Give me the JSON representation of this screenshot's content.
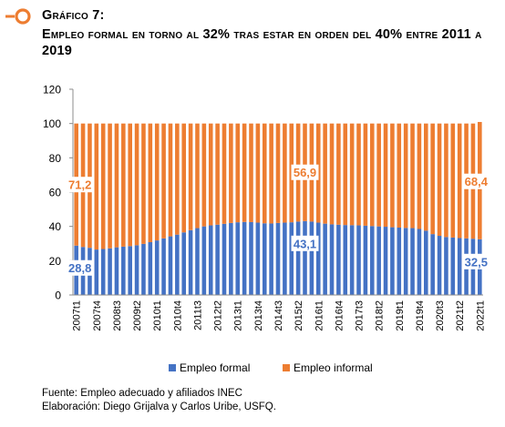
{
  "header": {
    "figure_label": "Gráfico 7:",
    "title": "Empleo formal en torno al 32% tras estar en orden del 40% entre 2011 a 2019"
  },
  "footer": {
    "source": "Fuente: Empleo adecuado y afiliados INEC",
    "credits": "Elaboración: Diego Grijalva y Carlos Uribe, USFQ."
  },
  "colors": {
    "accent": "#ED7D31",
    "formal": "#4472C4",
    "informal": "#ED7D31"
  },
  "chart_data": {
    "type": "bar",
    "stacked": true,
    "title": "",
    "xlabel": "",
    "ylabel": "",
    "ylim": [
      0,
      120
    ],
    "yticks": [
      0,
      20,
      40,
      60,
      80,
      100,
      120
    ],
    "grid": false,
    "legend_position": "bottom",
    "x_tick_labels": [
      "2007t1",
      "2007t4",
      "2008t3",
      "2009t2",
      "2010t1",
      "2010t4",
      "2011t3",
      "2012t2",
      "2013t1",
      "2013t4",
      "2014t3",
      "2015t2",
      "2016t1",
      "2016t4",
      "2017t3",
      "2018t2",
      "2019t1",
      "2019t4",
      "2020t3",
      "2021t2",
      "2022t1"
    ],
    "categories": [
      "2007t1",
      "2007t2",
      "2007t3",
      "2007t4",
      "2008t1",
      "2008t2",
      "2008t3",
      "2008t4",
      "2009t1",
      "2009t2",
      "2009t3",
      "2009t4",
      "2010t1",
      "2010t2",
      "2010t3",
      "2010t4",
      "2011t1",
      "2011t2",
      "2011t3",
      "2011t4",
      "2012t1",
      "2012t2",
      "2012t3",
      "2012t4",
      "2013t1",
      "2013t2",
      "2013t3",
      "2013t4",
      "2014t1",
      "2014t2",
      "2014t3",
      "2014t4",
      "2015t1",
      "2015t2",
      "2015t3",
      "2015t4",
      "2016t1",
      "2016t2",
      "2016t3",
      "2016t4",
      "2017t1",
      "2017t2",
      "2017t3",
      "2017t4",
      "2018t1",
      "2018t2",
      "2018t3",
      "2018t4",
      "2019t1",
      "2019t2",
      "2019t3",
      "2019t4",
      "2020t1",
      "2020t2",
      "2020t3",
      "2020t4",
      "2021t1",
      "2021t2",
      "2021t3",
      "2021t4",
      "2022t1"
    ],
    "series": [
      {
        "name": "Empleo formal",
        "color": "#4472C4",
        "values": [
          28.8,
          28,
          27.5,
          26.5,
          26.8,
          27.2,
          27.8,
          28.2,
          28.5,
          29,
          29.8,
          30.8,
          31.8,
          33,
          34.2,
          35.2,
          36.5,
          37.8,
          39,
          40,
          40.6,
          41,
          41.5,
          42,
          42.4,
          42.6,
          42.5,
          42.2,
          41.8,
          41.7,
          42,
          42.2,
          42.4,
          42.8,
          43.1,
          42.8,
          42.2,
          41.6,
          41.2,
          41,
          40.8,
          40.7,
          40.6,
          40.4,
          40.2,
          40,
          39.8,
          39.5,
          39.3,
          39.1,
          39,
          38.5,
          37.5,
          35.5,
          34.5,
          33.8,
          33.5,
          33.2,
          33,
          32.8,
          32.5
        ]
      },
      {
        "name": "Empleo informal",
        "color": "#ED7D31",
        "values": [
          71.2,
          72,
          72.5,
          73.5,
          73.2,
          72.8,
          72.2,
          71.8,
          71.5,
          71,
          70.2,
          69.2,
          68.2,
          67,
          65.8,
          64.8,
          63.5,
          62.2,
          61,
          60,
          59.4,
          59,
          58.5,
          58,
          57.6,
          57.4,
          57.5,
          57.8,
          58.2,
          58.3,
          58,
          57.8,
          57.6,
          57.2,
          56.9,
          57.2,
          57.8,
          58.4,
          58.8,
          59,
          59.2,
          59.3,
          59.4,
          59.6,
          59.8,
          60,
          60.2,
          60.5,
          60.7,
          60.9,
          61,
          61.5,
          62.5,
          64.5,
          65.5,
          66.2,
          66.5,
          66.8,
          67,
          67.2,
          68.4
        ]
      }
    ],
    "annotations": [
      {
        "series": "Empleo informal",
        "category": "2007t1",
        "text": "71,2"
      },
      {
        "series": "Empleo formal",
        "category": "2007t1",
        "text": "28,8"
      },
      {
        "series": "Empleo informal",
        "category": "2015t3",
        "text": "56,9"
      },
      {
        "series": "Empleo formal",
        "category": "2015t3",
        "text": "43,1"
      },
      {
        "series": "Empleo informal",
        "category": "2022t1",
        "text": "68,4"
      },
      {
        "series": "Empleo formal",
        "category": "2022t1",
        "text": "32,5"
      }
    ]
  }
}
